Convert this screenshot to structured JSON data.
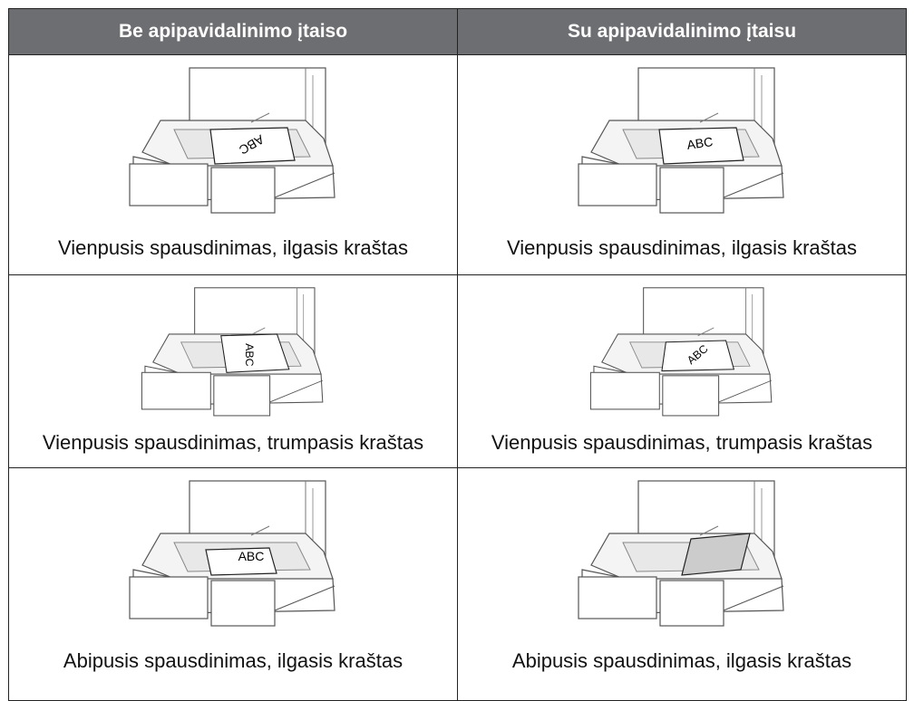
{
  "header": {
    "columns": [
      "Be apipavidalinimo įtaiso",
      "Su apipavidalinimo įtaisu"
    ]
  },
  "table": {
    "rows": [
      [
        {
          "caption": "Vienpusis spausdinimas, ilgasis kraštas",
          "paper_label": "ABC"
        },
        {
          "caption": "Vienpusis spausdinimas, ilgasis kraštas",
          "paper_label": "ABC"
        }
      ],
      [
        {
          "caption": "Vienpusis spausdinimas, trumpasis kraštas",
          "paper_label": "ABC"
        },
        {
          "caption": "Vienpusis spausdinimas, trumpasis kraštas",
          "paper_label": "ABC"
        }
      ],
      [
        {
          "caption": "Abipusis spausdinimas, ilgasis kraštas",
          "paper_label": "ABC"
        },
        {
          "caption": "Abipusis spausdinimas, ilgasis kraštas"
        }
      ]
    ]
  }
}
